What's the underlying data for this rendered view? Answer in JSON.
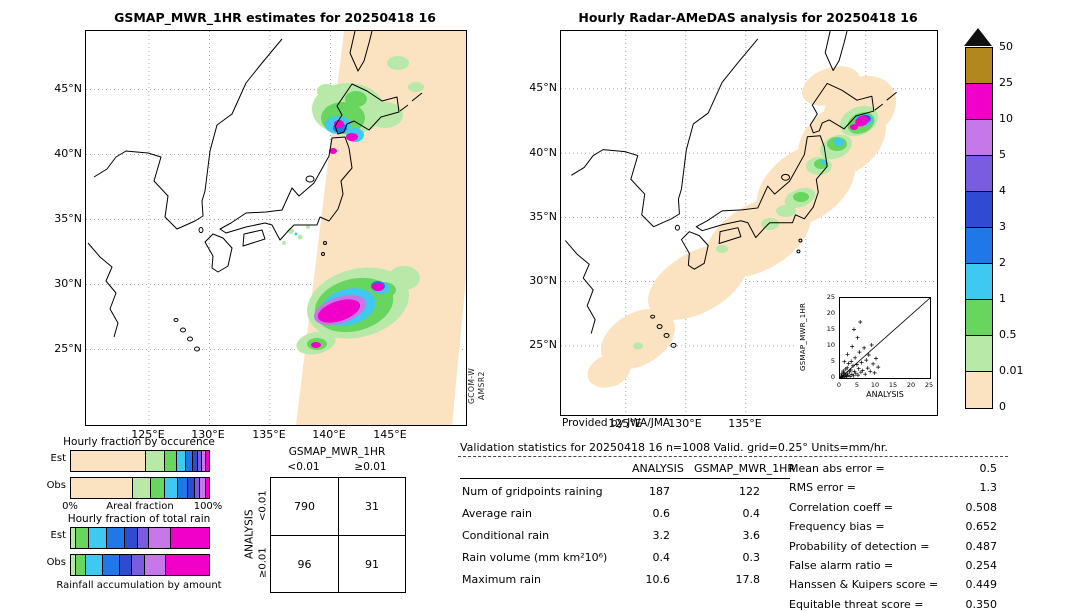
{
  "left_panel": {
    "title": "GSMAP_MWR_1HR estimates for 20250418 16",
    "lat_ticks": [
      "45°N",
      "40°N",
      "35°N",
      "30°N",
      "25°N"
    ],
    "lon_ticks": [
      "125°E",
      "130°E",
      "135°E",
      "140°E",
      "145°E"
    ],
    "satellite_label": [
      "GCOM-W",
      "AMSR2"
    ]
  },
  "right_panel": {
    "title": "Hourly Radar-AMeDAS analysis for 20250418 16",
    "lat_ticks": [
      "45°N",
      "40°N",
      "35°N",
      "30°N",
      "25°N"
    ],
    "lon_ticks": [
      "125°E",
      "130°E",
      "135°E"
    ],
    "credit": "Provided by JWA/JMA",
    "inset": {
      "xlabel": "ANALYSIS",
      "ylabel": "GSMAP_MWR_1HR",
      "x_ticks": [
        "0",
        "5",
        "10",
        "15",
        "20",
        "25"
      ],
      "y_ticks": [
        "0",
        "5",
        "10",
        "15",
        "20",
        "25"
      ]
    }
  },
  "colorbar": {
    "labels_top_to_bottom": [
      "50",
      "25",
      "10",
      "5",
      "4",
      "3",
      "2",
      "1",
      "0.5",
      "0.01",
      "0"
    ],
    "colors_low_to_high": [
      "#fbe3c2",
      "#b8e9a8",
      "#68d55e",
      "#3fc8f0",
      "#1f77e8",
      "#2f4bd2",
      "#7a5ce0",
      "#c678e8",
      "#f000c8",
      "#b2871e"
    ],
    "overflow_triangle_color": "#111111",
    "units": "mm/hr"
  },
  "occurrence_chart": {
    "title": "Hourly fraction by occurence",
    "row_labels": [
      "Est",
      "Obs"
    ],
    "axis": {
      "left": "0%",
      "center": "Areal fraction",
      "right": "100%"
    }
  },
  "amount_chart": {
    "title": "Hourly fraction of total rain",
    "row_labels": [
      "Est",
      "Obs"
    ],
    "footer": "Rainfall accumulation by amount"
  },
  "contingency": {
    "title": "GSMAP_MWR_1HR",
    "side_label": "ANALYSIS",
    "col_headers": [
      "<0.01",
      "≥0.01"
    ],
    "row_headers": [
      "<0.01",
      "≥0.01"
    ],
    "values": [
      [
        "790",
        "31"
      ],
      [
        "96",
        "91"
      ]
    ]
  },
  "stats": {
    "header": "Validation statistics for 20250418 16  n=1008 Valid. grid=0.25° Units=mm/hr.",
    "col_headers": [
      "ANALYSIS",
      "GSMAP_MWR_1HR"
    ],
    "rows": [
      {
        "label": "Num of gridpoints raining",
        "analysis": "187",
        "gsmap": "122"
      },
      {
        "label": "Average rain",
        "analysis": "0.6",
        "gsmap": "0.4"
      },
      {
        "label": "Conditional rain",
        "analysis": "3.2",
        "gsmap": "3.6"
      },
      {
        "label": "Rain volume (mm km²10⁶)",
        "analysis": "0.4",
        "gsmap": "0.3"
      },
      {
        "label": "Maximum rain",
        "analysis": "10.6",
        "gsmap": "17.8"
      }
    ],
    "metrics": [
      {
        "label": "Mean abs error =",
        "value": "0.5"
      },
      {
        "label": "RMS error =",
        "value": "1.3"
      },
      {
        "label": "Correlation coeff =",
        "value": "0.508"
      },
      {
        "label": "Frequency bias =",
        "value": "0.652"
      },
      {
        "label": "Probability of detection =",
        "value": "0.487"
      },
      {
        "label": "False alarm ratio =",
        "value": "0.254"
      },
      {
        "label": "Hanssen & Kuipers score =",
        "value": "0.449"
      },
      {
        "label": "Equitable threat score =",
        "value": "0.350"
      }
    ]
  },
  "chart_data": [
    {
      "type": "heatmap",
      "name": "gsmap-precip-map",
      "title": "GSMAP_MWR_1HR estimates for 20250418 16",
      "units": "mm/hr",
      "source": "GCOM-W AMSR2",
      "lon_ticks": [
        125,
        130,
        135,
        140,
        145
      ],
      "lat_ticks": [
        45,
        40,
        35,
        30,
        25
      ],
      "levels": [
        0,
        0.01,
        0.5,
        1,
        2,
        3,
        4,
        5,
        10,
        25,
        50
      ]
    },
    {
      "type": "heatmap",
      "name": "radar-amedas-map",
      "title": "Hourly Radar-AMeDAS analysis for 20250418 16",
      "units": "mm/hr",
      "credit": "Provided by JWA/JMA",
      "lon_ticks": [
        125,
        130,
        135
      ],
      "lat_ticks": [
        45,
        40,
        35,
        30,
        25
      ],
      "levels": [
        0,
        0.01,
        0.5,
        1,
        2,
        3,
        4,
        5,
        10,
        25,
        50
      ]
    },
    {
      "type": "scatter",
      "name": "validation-scatter",
      "xlabel": "ANALYSIS",
      "ylabel": "GSMAP_MWR_1HR",
      "xlim": [
        0,
        25
      ],
      "ylim": [
        0,
        25
      ],
      "diagonal": true,
      "points": [
        [
          0.2,
          0.1
        ],
        [
          0.3,
          0.6
        ],
        [
          0.5,
          0.2
        ],
        [
          0.5,
          1.3
        ],
        [
          0.7,
          0.4
        ],
        [
          0.9,
          2.2
        ],
        [
          1,
          0.7
        ],
        [
          1.1,
          1.6
        ],
        [
          1.3,
          0.3
        ],
        [
          1.5,
          1
        ],
        [
          1.6,
          2.8
        ],
        [
          1.8,
          0.5
        ],
        [
          2,
          1.3
        ],
        [
          2,
          3.2
        ],
        [
          2.2,
          0.8
        ],
        [
          2.4,
          4.5
        ],
        [
          2.6,
          1.9
        ],
        [
          2.8,
          0.4
        ],
        [
          3,
          2.5
        ],
        [
          3.1,
          5.2
        ],
        [
          3.3,
          1.1
        ],
        [
          3.6,
          3.8
        ],
        [
          3.8,
          0.7
        ],
        [
          4,
          2
        ],
        [
          4.2,
          6.3
        ],
        [
          4.4,
          1.5
        ],
        [
          4.7,
          4.2
        ],
        [
          5,
          0.9
        ],
        [
          5.2,
          2.9
        ],
        [
          5.4,
          8.1
        ],
        [
          5.8,
          1.8
        ],
        [
          6,
          4.8
        ],
        [
          6.3,
          2.3
        ],
        [
          6.7,
          9.4
        ],
        [
          7,
          1.2
        ],
        [
          7.3,
          5.6
        ],
        [
          7.7,
          3.1
        ],
        [
          8,
          7.2
        ],
        [
          8.4,
          2.1
        ],
        [
          8.8,
          10.3
        ],
        [
          9.2,
          4.4
        ],
        [
          9.6,
          1.6
        ],
        [
          10,
          6.1
        ],
        [
          10.6,
          3.4
        ],
        [
          3.4,
          9.8
        ],
        [
          2.1,
          7.4
        ],
        [
          4.9,
          12.6
        ],
        [
          3.9,
          15.2
        ],
        [
          5.6,
          17.5
        ],
        [
          1.2,
          5.1
        ]
      ]
    },
    {
      "type": "bar",
      "name": "occurrence-fractions",
      "subtype": "stacked-horizontal",
      "title": "Hourly fraction by occurence",
      "xlabel": "Areal fraction",
      "xlim": [
        0,
        100
      ],
      "categories": [
        "0-0.01",
        "0.01-0.5",
        "0.5-1",
        "1-2",
        "2-3",
        "3-4",
        "4-5",
        "5-10",
        "10-25"
      ],
      "series": [
        {
          "name": "Est",
          "values": [
            57,
            14,
            8,
            6,
            5,
            3,
            2,
            3,
            2
          ]
        },
        {
          "name": "Obs",
          "values": [
            47,
            13,
            10,
            9,
            7,
            5,
            3,
            4,
            2
          ]
        }
      ]
    },
    {
      "type": "bar",
      "name": "amount-fractions",
      "subtype": "stacked-horizontal",
      "title": "Hourly fraction of total rain",
      "xlabel": "Rainfall accumulation by amount",
      "xlim": [
        0,
        100
      ],
      "categories": [
        "0-0.01",
        "0.01-0.5",
        "0.5-1",
        "1-2",
        "2-3",
        "3-4",
        "4-5",
        "5-10",
        "10-25"
      ],
      "series": [
        {
          "name": "Est",
          "values": [
            0,
            3,
            9,
            13,
            13,
            9,
            8,
            16,
            29
          ]
        },
        {
          "name": "Obs",
          "values": [
            0,
            3,
            7,
            12,
            12,
            9,
            9,
            15,
            33
          ]
        }
      ]
    },
    {
      "type": "table",
      "name": "contingency-table",
      "row_label": "ANALYSIS",
      "col_label": "GSMAP_MWR_1HR",
      "col_headers": [
        "<0.01",
        "≥0.01"
      ],
      "row_headers": [
        "<0.01",
        "≥0.01"
      ],
      "values": [
        [
          790,
          31
        ],
        [
          96,
          91
        ]
      ]
    }
  ]
}
